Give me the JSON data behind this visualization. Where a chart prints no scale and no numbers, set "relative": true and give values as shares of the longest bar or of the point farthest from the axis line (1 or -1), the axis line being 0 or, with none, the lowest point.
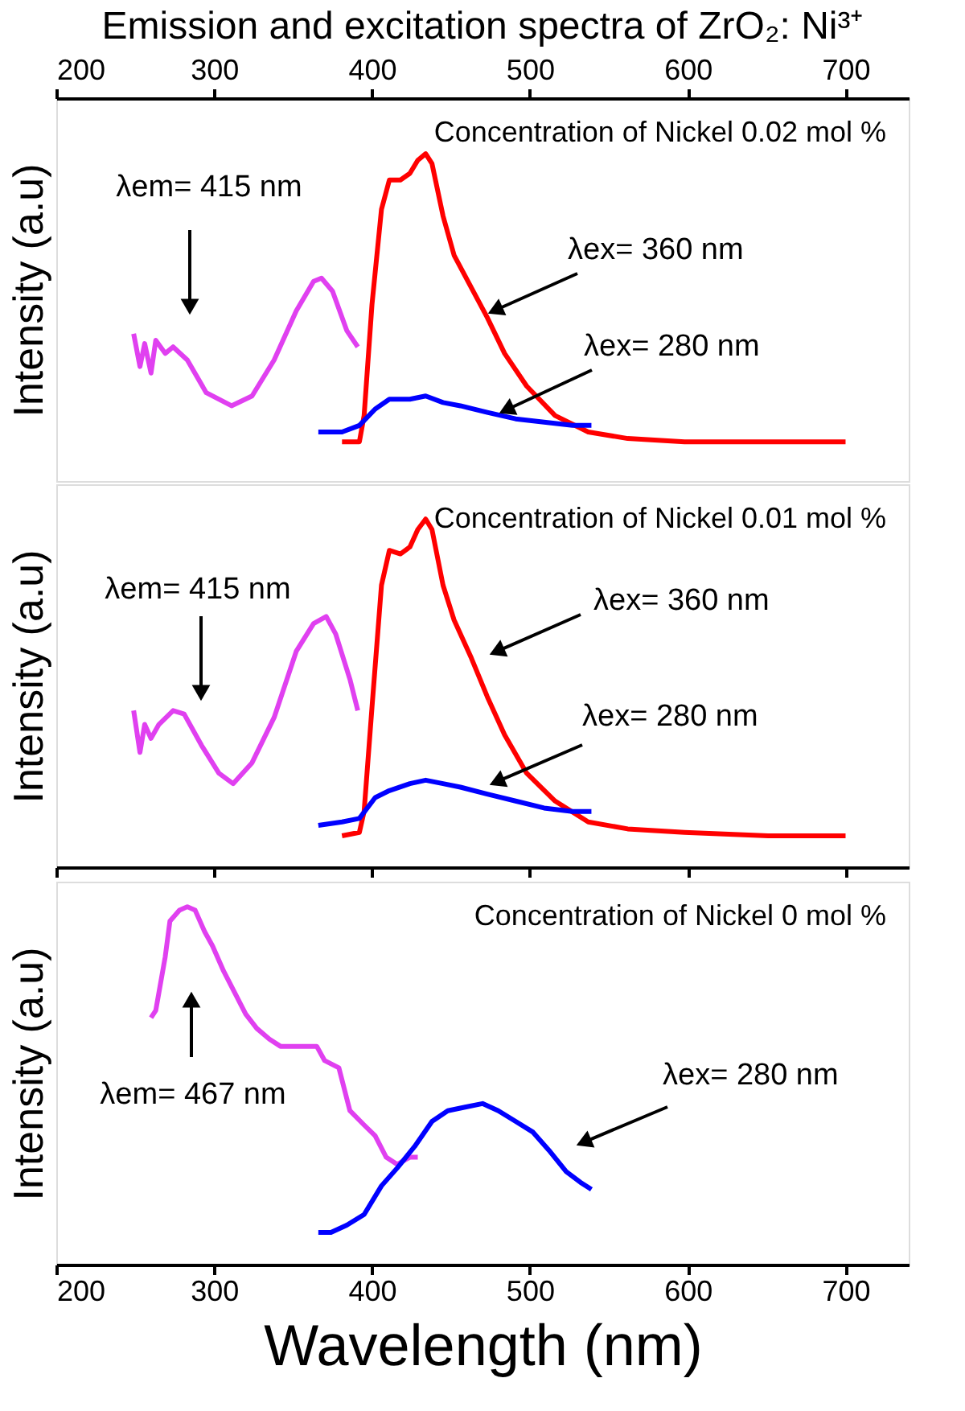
{
  "chart_data": [
    {
      "type": "line",
      "title": "Emission and excitation spectra of ZrO₂: Ni³⁺",
      "ylabel": "Intensity (a.u)",
      "relative": true,
      "grid": false,
      "legend": false,
      "tick_labels": "x",
      "xlim": [
        200,
        740
      ],
      "xticks": [
        200,
        300,
        400,
        500,
        600,
        700
      ],
      "annotations": [
        "Concentration of Nickel 0.02 mol %",
        "λem= 415 nm",
        "λex= 360 nm",
        "λex= 280 nm"
      ],
      "series": [
        {
          "color": "#e040f0",
          "x": [
            249,
            253,
            256,
            260,
            263,
            269,
            274,
            283,
            295,
            311,
            324,
            338,
            352,
            363,
            368,
            375,
            384,
            391
          ],
          "values": [
            0.45,
            0.35,
            0.42,
            0.33,
            0.43,
            0.39,
            0.41,
            0.37,
            0.27,
            0.23,
            0.26,
            0.37,
            0.52,
            0.61,
            0.62,
            0.58,
            0.46,
            0.41
          ]
        },
        {
          "color": "#ff0000",
          "x": [
            381,
            392,
            395,
            400,
            406,
            411,
            418,
            424,
            429,
            434,
            438,
            445,
            452,
            463,
            473,
            484,
            498,
            516,
            537,
            562,
            598,
            651,
            700
          ],
          "values": [
            0.12,
            0.12,
            0.2,
            0.54,
            0.83,
            0.92,
            0.92,
            0.94,
            0.98,
            1,
            0.97,
            0.81,
            0.69,
            0.59,
            0.5,
            0.39,
            0.29,
            0.2,
            0.15,
            0.13,
            0.12,
            0.12,
            0.12
          ]
        },
        {
          "color": "#0000ff",
          "x": [
            366,
            381,
            392,
            402,
            411,
            424,
            434,
            445,
            456,
            473,
            491,
            509,
            527,
            539
          ],
          "values": [
            0.15,
            0.15,
            0.17,
            0.22,
            0.25,
            0.25,
            0.26,
            0.24,
            0.23,
            0.21,
            0.19,
            0.18,
            0.17,
            0.17
          ]
        }
      ]
    },
    {
      "type": "line",
      "ylabel": "Intensity (a.u)",
      "relative": true,
      "grid": false,
      "legend": false,
      "tick_labels": false,
      "xlim": [
        200,
        740
      ],
      "xticks": [
        {
          "value": 200,
          "label": null
        },
        {
          "value": 300,
          "label": null
        },
        {
          "value": 400,
          "label": null
        },
        {
          "value": 500,
          "label": null
        },
        {
          "value": 600,
          "label": null
        },
        {
          "value": 700,
          "label": null
        }
      ],
      "annotations": [
        "Concentration of Nickel 0.01 mol %",
        "λem= 415 nm",
        "λex= 360 nm",
        "λex= 280 nm"
      ],
      "series": [
        {
          "color": "#e040f0",
          "x": [
            249,
            253,
            256,
            260,
            265,
            274,
            281,
            292,
            303,
            312,
            324,
            338,
            352,
            363,
            371,
            377,
            386,
            391
          ],
          "values": [
            0.45,
            0.33,
            0.41,
            0.37,
            0.41,
            0.45,
            0.44,
            0.35,
            0.27,
            0.24,
            0.3,
            0.43,
            0.62,
            0.7,
            0.72,
            0.67,
            0.54,
            0.45
          ]
        },
        {
          "color": "#ff0000",
          "x": [
            381,
            392,
            395,
            400,
            406,
            411,
            418,
            424,
            429,
            434,
            438,
            445,
            452,
            463,
            473,
            484,
            498,
            516,
            537,
            562,
            598,
            651,
            700
          ],
          "values": [
            0.09,
            0.1,
            0.16,
            0.46,
            0.81,
            0.91,
            0.9,
            0.92,
            0.97,
            1,
            0.97,
            0.81,
            0.71,
            0.6,
            0.49,
            0.38,
            0.27,
            0.19,
            0.13,
            0.11,
            0.1,
            0.09,
            0.09
          ]
        },
        {
          "color": "#0000ff",
          "x": [
            366,
            381,
            392,
            402,
            411,
            424,
            434,
            445,
            456,
            473,
            491,
            509,
            527,
            539
          ],
          "values": [
            0.12,
            0.13,
            0.14,
            0.2,
            0.22,
            0.24,
            0.25,
            0.24,
            0.23,
            0.21,
            0.19,
            0.17,
            0.16,
            0.16
          ]
        }
      ]
    },
    {
      "type": "line",
      "xlabel": "Wavelength (nm)",
      "ylabel": "Intensity (a.u)",
      "relative": true,
      "grid": false,
      "legend": false,
      "tick_labels": "x",
      "xlim": [
        200,
        740
      ],
      "xticks": [
        200,
        300,
        400,
        500,
        600,
        700
      ],
      "annotations": [
        "Concentration of Nickel 0 mol %",
        "λem= 467 nm",
        "λex= 280 nm"
      ],
      "series": [
        {
          "color": "#e040f0",
          "x": [
            260,
            263,
            269,
            272,
            278,
            283,
            288,
            294,
            299,
            306,
            313,
            320,
            327,
            335,
            342,
            352,
            365,
            370,
            379,
            386,
            395,
            402,
            409,
            416,
            424,
            429
          ],
          "values": [
            0.69,
            0.71,
            0.86,
            0.96,
            0.99,
            1,
            0.99,
            0.93,
            0.89,
            0.82,
            0.76,
            0.7,
            0.66,
            0.63,
            0.61,
            0.61,
            0.61,
            0.57,
            0.55,
            0.43,
            0.39,
            0.36,
            0.3,
            0.28,
            0.3,
            0.3
          ]
        },
        {
          "color": "#0000ff",
          "x": [
            366,
            374,
            384,
            395,
            406,
            416,
            427,
            438,
            448,
            459,
            470,
            480,
            491,
            502,
            512,
            523,
            532,
            539
          ],
          "values": [
            0.09,
            0.09,
            0.11,
            0.14,
            0.22,
            0.27,
            0.33,
            0.4,
            0.43,
            0.44,
            0.45,
            0.43,
            0.4,
            0.37,
            0.32,
            0.26,
            0.23,
            0.21
          ]
        }
      ]
    }
  ]
}
